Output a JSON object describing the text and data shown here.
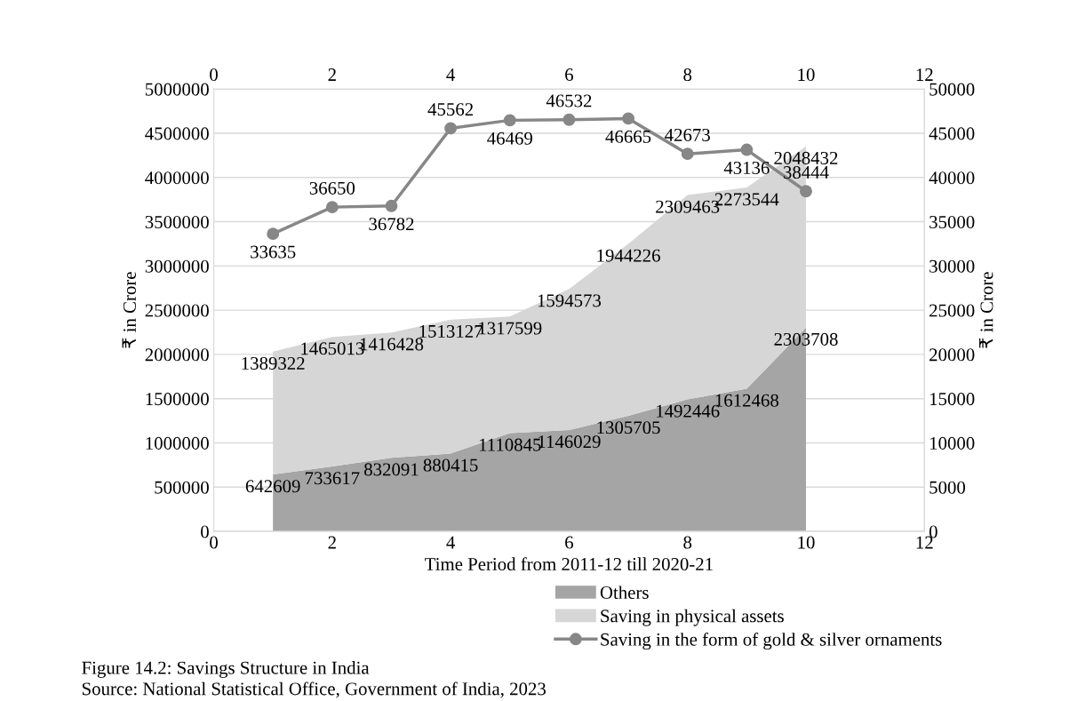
{
  "chart_data": {
    "type": "area",
    "title": "Figure 14.2: Savings Structure in India",
    "annotations": [
      "Source: National Statistical Office, Government of India, 2023"
    ],
    "xlabel": "Time Period from 2011-12 till 2020-21",
    "ylabel": "₹ in Crore",
    "y2label": "₹ in Crore",
    "stacked": true,
    "data_labels": true,
    "grid": "y",
    "legend": "bottom",
    "xlim": [
      0,
      12
    ],
    "xticks": [
      0,
      2,
      4,
      6,
      8,
      10,
      12
    ],
    "x2lim": [
      0,
      12
    ],
    "x2ticks": [
      0,
      2,
      4,
      6,
      8,
      10,
      12
    ],
    "ylim": [
      0,
      5000000
    ],
    "yticks": [
      0,
      500000,
      1000000,
      1500000,
      2000000,
      2500000,
      3000000,
      3500000,
      4000000,
      4500000,
      5000000
    ],
    "y2lim": [
      0,
      50000
    ],
    "y2ticks": [
      0,
      5000,
      10000,
      15000,
      20000,
      25000,
      30000,
      35000,
      40000,
      45000,
      50000
    ],
    "series": [
      {
        "name": "Others",
        "color": "#a5a5a5",
        "x": [
          1,
          2,
          3,
          4,
          5,
          6,
          7,
          8,
          9,
          10
        ],
        "values": [
          642609,
          733617,
          832091,
          880415,
          1110845,
          1146029,
          1305705,
          1492446,
          1612468,
          2303708
        ]
      },
      {
        "name": "Saving in physical assets",
        "color": "#d6d6d6",
        "x": [
          1,
          2,
          3,
          4,
          5,
          6,
          7,
          8,
          9,
          10
        ],
        "values": [
          1389322,
          1465013,
          1416428,
          1513127,
          1317599,
          1594573,
          1944226,
          2309463,
          2273544,
          2048432
        ]
      },
      {
        "name": "Saving in the form of gold & silver ornaments",
        "type": "line",
        "axis": "y2",
        "color": "#878787",
        "marker": "circle",
        "x": [
          1,
          2,
          3,
          4,
          5,
          6,
          7,
          8,
          9,
          10
        ],
        "values": [
          33635,
          36650,
          36782,
          45562,
          46469,
          46532,
          46665,
          42673,
          43136,
          38444
        ]
      }
    ]
  }
}
